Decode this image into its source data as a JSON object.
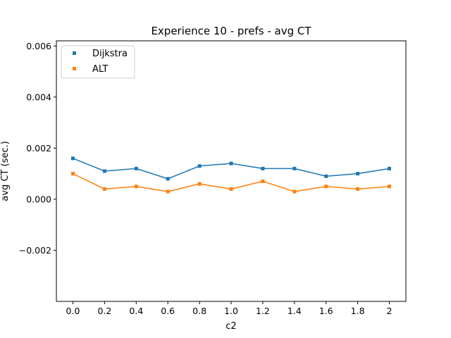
{
  "chart_data": {
    "type": "line",
    "title": "Experience 10 - prefs - avg CT",
    "xlabel": "c2",
    "ylabel": "avg CT (sec.)",
    "categories": [
      "0.0",
      "0.2",
      "0.4",
      "0.6",
      "0.8",
      "1.0",
      "1.2",
      "1.4",
      "1.6",
      "1.8",
      "2"
    ],
    "ylim": [
      -0.004,
      0.0062
    ],
    "yticks": [
      -0.002,
      0.0,
      0.002,
      0.004,
      0.006
    ],
    "ytick_labels": [
      "−0.002",
      "0.000",
      "0.002",
      "0.004",
      "0.006"
    ],
    "grid": false,
    "legend": "upper-left",
    "series": [
      {
        "name": "Dijkstra",
        "color": "#1f77b4",
        "marker": "square",
        "values": [
          0.0016,
          0.0011,
          0.0012,
          0.0008,
          0.0013,
          0.0014,
          0.0012,
          0.0012,
          0.0009,
          0.001,
          0.0012
        ]
      },
      {
        "name": "ALT",
        "color": "#ff7f0e",
        "marker": "square",
        "values": [
          0.001,
          0.0004,
          0.0005,
          0.0003,
          0.0006,
          0.0004,
          0.0007,
          0.0003,
          0.0005,
          0.0004,
          0.0005
        ]
      }
    ]
  }
}
